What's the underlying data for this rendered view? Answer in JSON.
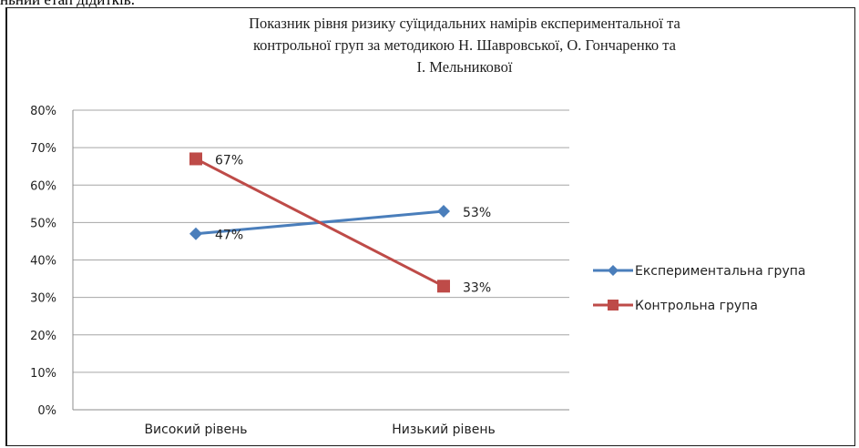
{
  "fragment_text": "ньний етап дідитків.",
  "colors": {
    "series_1": "#4a7ebb",
    "series_2": "#be4b48",
    "grid": "#a6a6a6",
    "axis": "#8c8c8c"
  },
  "chart_data": {
    "type": "line",
    "title_lines": [
      "Показник рівня ризику суїцидальних намірів експериментальної та",
      "контрольної груп  за методикою Н. Шавровської, О. Гончаренко та",
      "І. Мельникової"
    ],
    "categories": [
      "Високий рівень",
      "Низький рівень"
    ],
    "series": [
      {
        "name": "Експериментальна група",
        "values": [
          47,
          53
        ],
        "labels": [
          "47%",
          "53%"
        ],
        "marker": "diamond",
        "color": "#4a7ebb"
      },
      {
        "name": "Контрольна група",
        "values": [
          67,
          33
        ],
        "labels": [
          "67%",
          "33%"
        ],
        "marker": "square",
        "color": "#be4b48"
      }
    ],
    "y_ticks": [
      "0%",
      "10%",
      "20%",
      "30%",
      "40%",
      "50%",
      "60%",
      "70%",
      "80%"
    ],
    "ylim": [
      0,
      80
    ],
    "y_unit": "%",
    "grid": true,
    "legend_position": "right"
  }
}
